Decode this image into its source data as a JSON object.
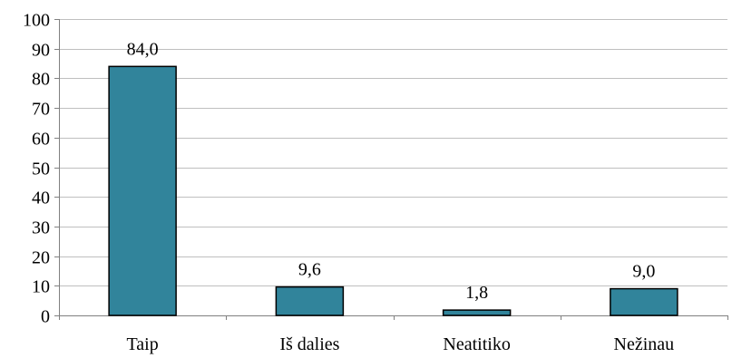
{
  "chart_data": {
    "type": "bar",
    "categories": [
      "Taip",
      "Iš dalies",
      "Neatitiko",
      "Nežinau"
    ],
    "values": [
      84.0,
      9.6,
      1.8,
      9.0
    ],
    "data_labels": [
      "84,0",
      "9,6",
      "1,8",
      "9,0"
    ],
    "title": "",
    "xlabel": "",
    "ylabel": "",
    "ylim": [
      0,
      100
    ],
    "yticks": [
      0,
      10,
      20,
      30,
      40,
      50,
      60,
      70,
      80,
      90,
      100
    ],
    "grid": true,
    "legend": "none",
    "bar_color": "#31849b"
  }
}
